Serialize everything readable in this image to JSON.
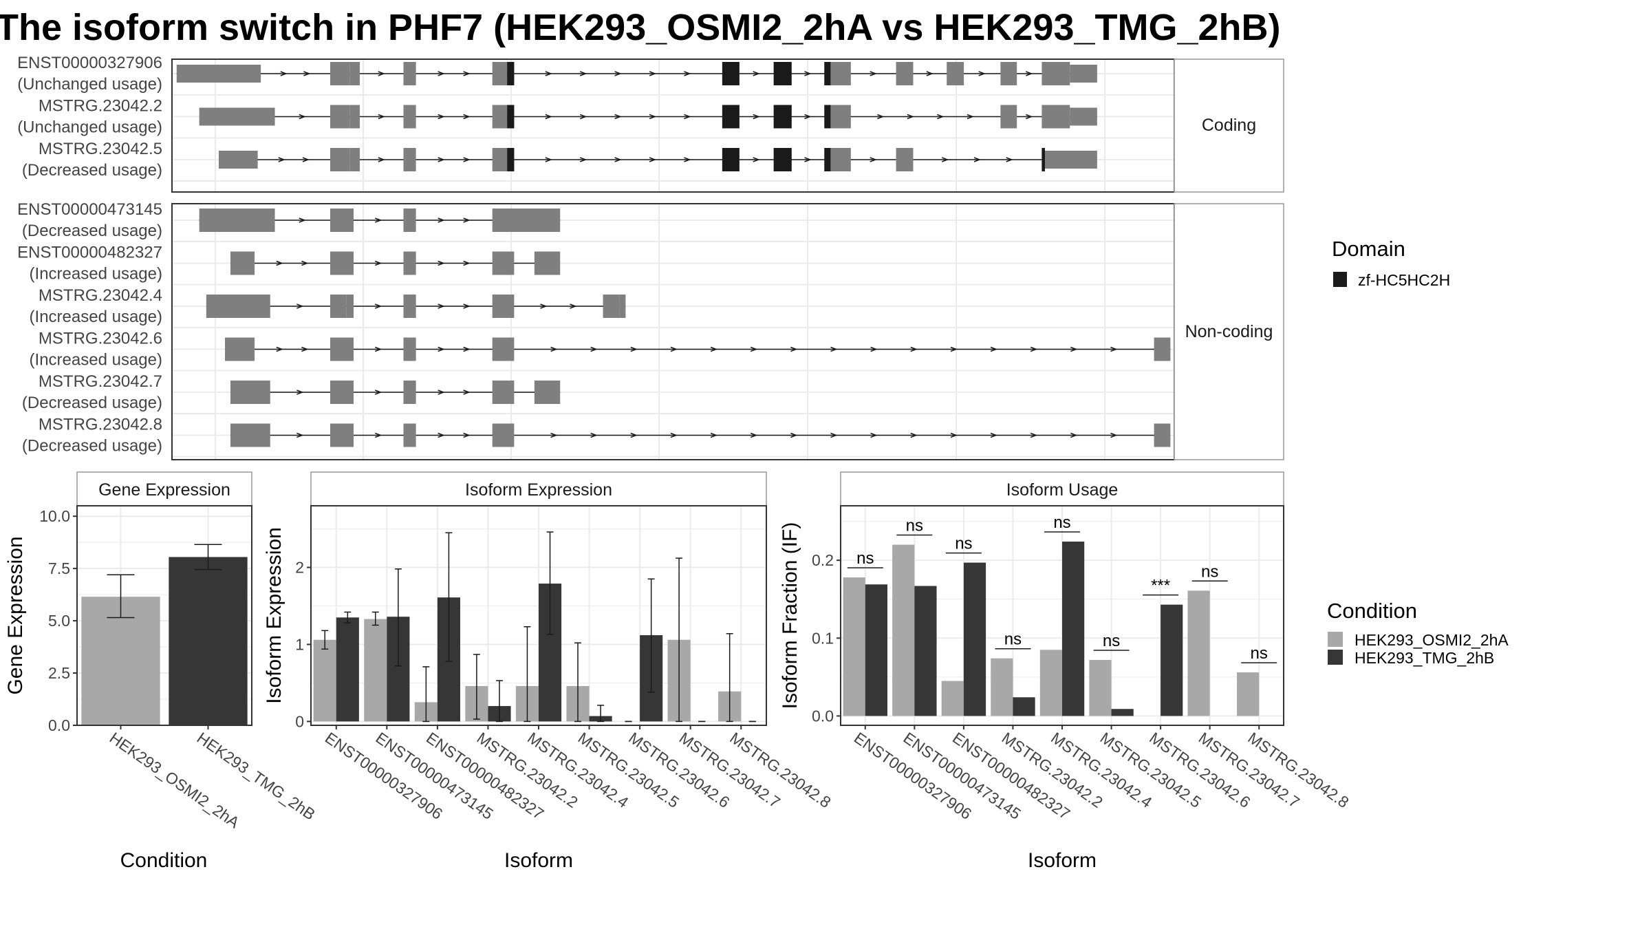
{
  "title": "The isoform switch in PHF7 (HEK293_OSMI2_2hA vs HEK293_TMG_2hB)",
  "colors": {
    "exon": "#7f7f7f",
    "domain": "#1a1a1a",
    "cond_a": "#a8a8a8",
    "cond_b": "#363636",
    "grid": "#ebebeb",
    "strip_bg": "#ffffff",
    "panel_border": "#333333"
  },
  "legend": {
    "domain_title": "Domain",
    "domain_items": [
      {
        "label": "zf-HC5HC2H",
        "color": "#1a1a1a"
      }
    ],
    "condition_title": "Condition",
    "condition_items": [
      {
        "label": "HEK293_OSMI2_2hA",
        "color": "#a8a8a8"
      },
      {
        "label": "HEK293_TMG_2hB",
        "color": "#363636"
      }
    ]
  },
  "transcripts": {
    "strips": [
      "Coding",
      "Non-coding"
    ],
    "groups": [
      {
        "strip": "Coding",
        "rows": [
          {
            "id": "ENST00000327906",
            "usage": "(Unchanged usage)",
            "exons": [
              [
                0.6,
                11.4
              ],
              [
                20.3,
                22.8
              ],
              [
                22.8,
                24.1
              ],
              [
                29.7,
                31.3
              ],
              [
                41.1,
                43.0
              ],
              [
                43.0,
                43.9
              ],
              [
                70.6,
                72.8
              ],
              [
                77.2,
                79.5
              ],
              [
                83.7,
                84.5
              ],
              [
                84.5,
                87.1
              ],
              [
                92.9,
                95.1
              ],
              [
                99.4,
                101.6
              ],
              [
                106.3,
                108.4
              ],
              [
                111.6,
                115.2
              ],
              [
                115.2,
                118.7
              ]
            ],
            "domains": [
              [
                43.0,
                43.9
              ],
              [
                70.6,
                72.8
              ],
              [
                77.2,
                79.5
              ],
              [
                83.7,
                84.5
              ]
            ]
          },
          {
            "id": "MSTRG.23042.2",
            "usage": "(Unchanged usage)",
            "exons": [
              [
                3.5,
                13.2
              ],
              [
                20.3,
                22.8
              ],
              [
                22.8,
                24.1
              ],
              [
                29.7,
                31.3
              ],
              [
                41.1,
                43.0
              ],
              [
                43.0,
                43.9
              ],
              [
                70.6,
                72.8
              ],
              [
                77.2,
                79.5
              ],
              [
                83.7,
                84.5
              ],
              [
                84.5,
                87.1
              ],
              [
                106.3,
                108.4
              ],
              [
                111.6,
                115.2
              ],
              [
                115.2,
                118.7
              ]
            ],
            "domains": [
              [
                43.0,
                43.9
              ],
              [
                70.6,
                72.8
              ],
              [
                77.2,
                79.5
              ],
              [
                83.7,
                84.5
              ]
            ]
          },
          {
            "id": "MSTRG.23042.5",
            "usage": "(Decreased usage)",
            "exons": [
              [
                6.0,
                11.0
              ],
              [
                20.3,
                22.8
              ],
              [
                22.8,
                24.1
              ],
              [
                29.7,
                31.3
              ],
              [
                41.1,
                43.0
              ],
              [
                43.0,
                43.9
              ],
              [
                70.6,
                72.8
              ],
              [
                77.2,
                79.5
              ],
              [
                83.7,
                84.5
              ],
              [
                84.5,
                87.1
              ],
              [
                92.9,
                95.1
              ],
              [
                111.6,
                112.0
              ],
              [
                112.0,
                118.7
              ]
            ],
            "domains": [
              [
                43.0,
                43.9
              ],
              [
                70.6,
                72.8
              ],
              [
                77.2,
                79.5
              ],
              [
                83.7,
                84.5
              ],
              [
                111.6,
                112.0
              ]
            ]
          }
        ]
      },
      {
        "strip": "Non-coding",
        "rows": [
          {
            "id": "ENST00000473145",
            "usage": "(Decreased usage)",
            "exons": [
              [
                3.5,
                13.2
              ],
              [
                20.3,
                23.3
              ],
              [
                29.7,
                31.3
              ],
              [
                41.1,
                49.8
              ]
            ],
            "domains": []
          },
          {
            "id": "ENST00000482327",
            "usage": "(Increased usage)",
            "exons": [
              [
                7.5,
                10.6
              ],
              [
                20.3,
                23.3
              ],
              [
                29.7,
                31.3
              ],
              [
                41.1,
                43.9
              ],
              [
                46.5,
                49.8
              ]
            ],
            "domains": []
          },
          {
            "id": "MSTRG.23042.4",
            "usage": "(Increased usage)",
            "exons": [
              [
                4.4,
                12.6
              ],
              [
                20.3,
                22.4
              ],
              [
                22.4,
                23.3
              ],
              [
                29.7,
                31.3
              ],
              [
                41.1,
                43.9
              ],
              [
                55.3,
                57.4
              ],
              [
                57.4,
                58.2
              ]
            ],
            "domains": []
          },
          {
            "id": "MSTRG.23042.6",
            "usage": "(Increased usage)",
            "exons": [
              [
                6.8,
                10.6
              ],
              [
                20.3,
                23.3
              ],
              [
                29.7,
                31.3
              ],
              [
                41.1,
                43.9
              ],
              [
                126.0,
                128.1
              ]
            ],
            "domains": []
          },
          {
            "id": "MSTRG.23042.7",
            "usage": "(Decreased usage)",
            "exons": [
              [
                7.5,
                12.6
              ],
              [
                20.3,
                23.3
              ],
              [
                29.7,
                31.3
              ],
              [
                41.1,
                43.9
              ],
              [
                46.5,
                49.8
              ]
            ],
            "domains": []
          },
          {
            "id": "MSTRG.23042.8",
            "usage": "(Decreased usage)",
            "exons": [
              [
                7.5,
                12.6
              ],
              [
                20.3,
                23.3
              ],
              [
                29.7,
                31.3
              ],
              [
                41.1,
                43.9
              ],
              [
                126.0,
                128.1
              ]
            ],
            "domains": []
          }
        ]
      }
    ]
  },
  "chart_data": [
    {
      "type": "bar",
      "title": "Gene Expression",
      "xlabel": "Condition",
      "ylabel": "Gene Expression",
      "ylim": [
        0,
        10.5
      ],
      "yticks": [
        "0.0",
        "2.5",
        "5.0",
        "7.5",
        "10.0"
      ],
      "categories": [
        "HEK293_OSMI2_2hA",
        "HEK293_TMG_2hB"
      ],
      "values": [
        6.15,
        8.05
      ],
      "errors": [
        [
          5.15,
          7.2
        ],
        [
          7.45,
          8.65
        ]
      ]
    },
    {
      "type": "bar",
      "title": "Isoform Expression",
      "xlabel": "Isoform",
      "ylabel": "Isoform Expression",
      "ylim": [
        -0.05,
        2.8
      ],
      "yticks": [
        "0",
        "1",
        "2"
      ],
      "categories": [
        "ENST00000327906",
        "ENST00000473145",
        "ENST00000482327",
        "MSTRG.23042.2",
        "MSTRG.23042.4",
        "MSTRG.23042.5",
        "MSTRG.23042.6",
        "MSTRG.23042.7",
        "MSTRG.23042.8"
      ],
      "series": [
        {
          "name": "HEK293_OSMI2_2hA",
          "values": [
            1.06,
            1.33,
            0.25,
            0.46,
            0.46,
            0.46,
            0.0,
            1.06,
            0.39
          ],
          "errors": [
            [
              0.94,
              1.18
            ],
            [
              1.25,
              1.42
            ],
            [
              0.0,
              0.71
            ],
            [
              0.03,
              0.87
            ],
            [
              0.0,
              1.23
            ],
            [
              0.0,
              1.02
            ],
            [
              0.0,
              0.0
            ],
            [
              0.0,
              2.12
            ],
            [
              0.0,
              1.14
            ]
          ]
        },
        {
          "name": "HEK293_TMG_2hB",
          "values": [
            1.35,
            1.36,
            1.61,
            0.2,
            1.79,
            0.07,
            1.12,
            0.0,
            0.0
          ],
          "errors": [
            [
              1.28,
              1.42
            ],
            [
              0.72,
              1.98
            ],
            [
              0.78,
              2.45
            ],
            [
              0.0,
              0.53
            ],
            [
              1.13,
              2.46
            ],
            [
              0.0,
              0.21
            ],
            [
              0.38,
              1.85
            ],
            [
              0.0,
              0.0
            ],
            [
              0.0,
              0.0
            ]
          ]
        }
      ]
    },
    {
      "type": "bar",
      "title": "Isoform Usage",
      "xlabel": "Isoform",
      "ylabel": "Isoform Fraction (IF)",
      "ylim": [
        -0.012,
        0.27
      ],
      "yticks": [
        "0.0",
        "0.1",
        "0.2"
      ],
      "categories": [
        "ENST00000327906",
        "ENST00000473145",
        "ENST00000482327",
        "MSTRG.23042.2",
        "MSTRG.23042.4",
        "MSTRG.23042.5",
        "MSTRG.23042.6",
        "MSTRG.23042.7",
        "MSTRG.23042.8"
      ],
      "series": [
        {
          "name": "HEK293_OSMI2_2hA",
          "values": [
            0.178,
            0.22,
            0.045,
            0.074,
            0.085,
            0.072,
            0.0,
            0.161,
            0.056
          ]
        },
        {
          "name": "HEK293_TMG_2hB",
          "values": [
            0.169,
            0.167,
            0.197,
            0.024,
            0.224,
            0.009,
            0.143,
            0.0,
            0.0
          ]
        }
      ],
      "annotations": [
        "ns",
        "ns",
        "ns",
        "ns",
        "ns",
        "ns",
        "***",
        "ns",
        "ns"
      ]
    }
  ]
}
